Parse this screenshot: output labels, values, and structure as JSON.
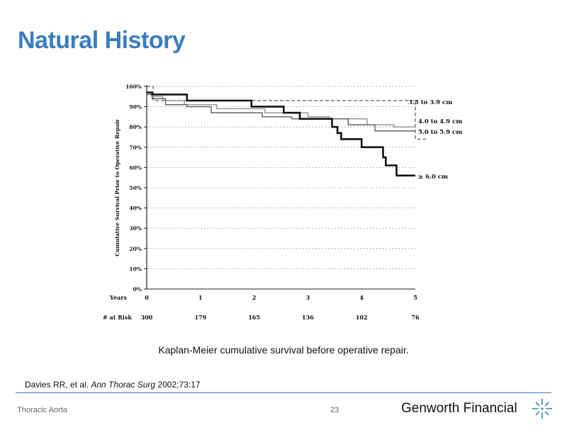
{
  "slide": {
    "title": "Natural History",
    "caption": "Kaplan-Meier cumulative survival before operative repair.",
    "citation": {
      "authors": "Davies RR, et al. ",
      "journal": "Ann Thorac Surg",
      "details": " 2002;73:17"
    },
    "footer_left": "Thoracic Aorta",
    "page_number": "23",
    "brand": "Genworth Financial",
    "accent_color": "#3b7dbf",
    "logo_icon": "genworth-star-icon"
  },
  "chart_data": {
    "type": "line",
    "subtype": "kaplan-meier step",
    "ylabel": "Cumulative Survival Prior to Operative Repair",
    "xlabel": "Years",
    "ylim": [
      0,
      100
    ],
    "xlim": [
      0,
      5
    ],
    "yticks": [
      "0%",
      "10%",
      "20%",
      "30%",
      "40%",
      "50%",
      "60%",
      "70%",
      "80%",
      "90%",
      "100%"
    ],
    "xticks": [
      "0",
      "1",
      "2",
      "3",
      "4",
      "5"
    ],
    "grid": "horizontal dotted",
    "at_risk_label": "# at Risk",
    "at_risk": [
      "300",
      "179",
      "165",
      "136",
      "102",
      "76"
    ],
    "series": [
      {
        "name": "3.5 to 3.9 cm",
        "style": "dashed",
        "color": "#777777",
        "points": [
          [
            0,
            100
          ],
          [
            0.12,
            100
          ],
          [
            0.12,
            93
          ],
          [
            5,
            93
          ],
          [
            5,
            74
          ],
          [
            5.2,
            74
          ]
        ]
      },
      {
        "name": "4.0 to 4.9 cm",
        "style": "solid",
        "color": "#999999",
        "points": [
          [
            0,
            97
          ],
          [
            0.1,
            97
          ],
          [
            0.1,
            95
          ],
          [
            0.3,
            95
          ],
          [
            0.3,
            93
          ],
          [
            0.7,
            93
          ],
          [
            0.7,
            91
          ],
          [
            1.3,
            91
          ],
          [
            1.3,
            89
          ],
          [
            2.2,
            89
          ],
          [
            2.2,
            87
          ],
          [
            3.0,
            87
          ],
          [
            3.0,
            85
          ],
          [
            3.4,
            85
          ],
          [
            3.4,
            84
          ],
          [
            4.1,
            84
          ],
          [
            4.1,
            81
          ],
          [
            4.6,
            81
          ],
          [
            4.6,
            80
          ],
          [
            5,
            80
          ]
        ]
      },
      {
        "name": "5.0 to 5.9 cm",
        "style": "solid",
        "color": "#666666",
        "points": [
          [
            0,
            96
          ],
          [
            0.1,
            96
          ],
          [
            0.1,
            94
          ],
          [
            0.35,
            94
          ],
          [
            0.35,
            91
          ],
          [
            0.75,
            91
          ],
          [
            0.75,
            90
          ],
          [
            1.2,
            90
          ],
          [
            1.2,
            87
          ],
          [
            2.15,
            87
          ],
          [
            2.15,
            85
          ],
          [
            2.7,
            85
          ],
          [
            2.7,
            84
          ],
          [
            3.75,
            84
          ],
          [
            3.75,
            81
          ],
          [
            4.25,
            81
          ],
          [
            4.25,
            78
          ],
          [
            5,
            78
          ]
        ]
      },
      {
        "name": "≥ 6.0 cm",
        "style": "solid-bold",
        "color": "#111111",
        "points": [
          [
            0,
            97
          ],
          [
            0.1,
            97
          ],
          [
            0.1,
            96
          ],
          [
            0.75,
            96
          ],
          [
            0.75,
            93
          ],
          [
            1.95,
            93
          ],
          [
            1.95,
            90
          ],
          [
            2.55,
            90
          ],
          [
            2.55,
            87
          ],
          [
            2.85,
            87
          ],
          [
            2.85,
            84
          ],
          [
            3.45,
            84
          ],
          [
            3.45,
            80
          ],
          [
            3.55,
            80
          ],
          [
            3.55,
            77
          ],
          [
            3.62,
            77
          ],
          [
            3.62,
            74
          ],
          [
            4.0,
            74
          ],
          [
            4.0,
            70
          ],
          [
            4.4,
            70
          ],
          [
            4.4,
            65
          ],
          [
            4.45,
            65
          ],
          [
            4.45,
            61
          ],
          [
            4.65,
            61
          ],
          [
            4.65,
            56
          ],
          [
            5,
            56
          ]
        ]
      }
    ]
  }
}
